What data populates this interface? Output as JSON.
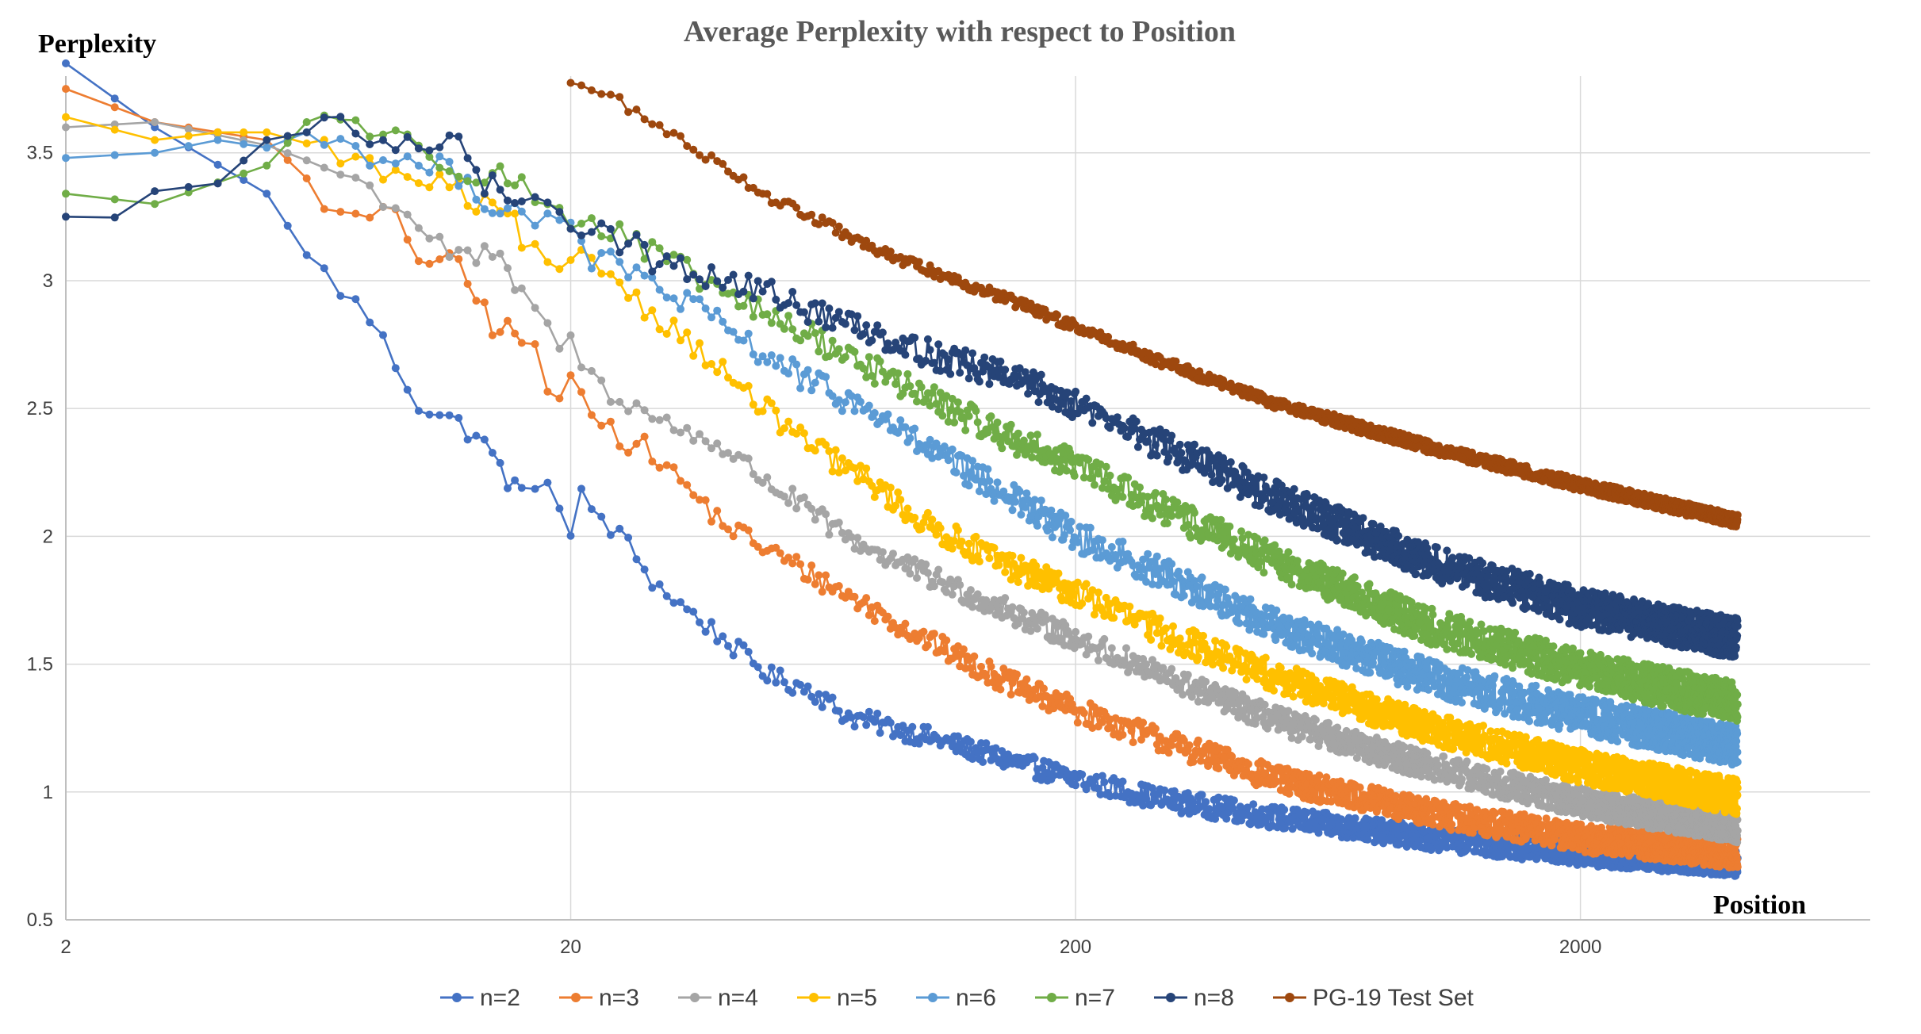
{
  "chart_data": {
    "type": "line",
    "title": "Average Perplexity with respect to Position",
    "xlabel": "Position",
    "ylabel": "Perplexity",
    "x_scale": "log",
    "xlim": [
      2,
      7500
    ],
    "ylim": [
      0.5,
      3.8
    ],
    "x_ticks": [
      2,
      20,
      200,
      2000
    ],
    "x_tick_labels": [
      "2",
      "20",
      "200",
      "2000"
    ],
    "y_ticks": [
      0.5,
      1,
      1.5,
      2,
      2.5,
      3,
      3.5
    ],
    "y_tick_labels": [
      "0.5",
      "1",
      "1.5",
      "2",
      "2.5",
      "3",
      "3.5"
    ],
    "x_max_data": 4096,
    "grid": true,
    "legend_position": "bottom",
    "series": [
      {
        "name": "n=2",
        "color": "#4472C4",
        "anchors": [
          [
            2,
            3.85
          ],
          [
            3,
            3.6
          ],
          [
            5,
            3.34
          ],
          [
            6,
            3.1
          ],
          [
            8,
            2.85
          ],
          [
            10,
            2.52
          ],
          [
            13,
            2.4
          ],
          [
            16,
            2.15
          ],
          [
            18,
            2.25
          ],
          [
            20,
            1.98
          ],
          [
            21,
            2.15
          ],
          [
            25,
            2.0
          ],
          [
            30,
            1.8
          ],
          [
            40,
            1.6
          ],
          [
            50,
            1.45
          ],
          [
            60,
            1.4
          ],
          [
            70,
            1.3
          ],
          [
            100,
            1.22
          ],
          [
            150,
            1.12
          ],
          [
            200,
            1.05
          ],
          [
            300,
            0.97
          ],
          [
            500,
            0.9
          ],
          [
            1000,
            0.82
          ],
          [
            2000,
            0.76
          ],
          [
            4096,
            0.72
          ]
        ],
        "noise": [
          0.03,
          0.05
        ]
      },
      {
        "name": "n=3",
        "color": "#ED7D31",
        "anchors": [
          [
            2,
            3.75
          ],
          [
            3,
            3.62
          ],
          [
            5,
            3.55
          ],
          [
            6,
            3.4
          ],
          [
            7,
            3.24
          ],
          [
            9,
            3.25
          ],
          [
            10,
            3.1
          ],
          [
            12,
            3.05
          ],
          [
            14,
            2.83
          ],
          [
            17,
            2.75
          ],
          [
            18,
            2.52
          ],
          [
            20,
            2.6
          ],
          [
            25,
            2.4
          ],
          [
            30,
            2.3
          ],
          [
            40,
            2.05
          ],
          [
            60,
            1.85
          ],
          [
            100,
            1.6
          ],
          [
            150,
            1.42
          ],
          [
            200,
            1.32
          ],
          [
            300,
            1.2
          ],
          [
            500,
            1.05
          ],
          [
            1000,
            0.92
          ],
          [
            2000,
            0.82
          ],
          [
            4096,
            0.76
          ]
        ],
        "noise": [
          0.03,
          0.06
        ]
      },
      {
        "name": "n=4",
        "color": "#A5A5A5",
        "anchors": [
          [
            2,
            3.6
          ],
          [
            3,
            3.62
          ],
          [
            5,
            3.53
          ],
          [
            7,
            3.42
          ],
          [
            9,
            3.3
          ],
          [
            11,
            3.15
          ],
          [
            12,
            3.08
          ],
          [
            14,
            3.1
          ],
          [
            16,
            2.95
          ],
          [
            18,
            2.8
          ],
          [
            20,
            2.75
          ],
          [
            22,
            2.62
          ],
          [
            30,
            2.45
          ],
          [
            40,
            2.35
          ],
          [
            50,
            2.2
          ],
          [
            70,
            2.0
          ],
          [
            100,
            1.85
          ],
          [
            150,
            1.7
          ],
          [
            200,
            1.6
          ],
          [
            300,
            1.45
          ],
          [
            500,
            1.28
          ],
          [
            1000,
            1.1
          ],
          [
            2000,
            0.96
          ],
          [
            4096,
            0.86
          ]
        ],
        "noise": [
          0.03,
          0.06
        ]
      },
      {
        "name": "n=5",
        "color": "#FFC000",
        "anchors": [
          [
            2,
            3.64
          ],
          [
            3,
            3.55
          ],
          [
            4,
            3.58
          ],
          [
            5,
            3.58
          ],
          [
            7,
            3.5
          ],
          [
            9,
            3.4
          ],
          [
            11,
            3.38
          ],
          [
            13,
            3.3
          ],
          [
            15,
            3.25
          ],
          [
            17,
            3.1
          ],
          [
            19,
            3.0
          ],
          [
            22,
            3.1
          ],
          [
            28,
            2.9
          ],
          [
            35,
            2.75
          ],
          [
            45,
            2.55
          ],
          [
            60,
            2.35
          ],
          [
            80,
            2.2
          ],
          [
            100,
            2.05
          ],
          [
            150,
            1.88
          ],
          [
            200,
            1.78
          ],
          [
            300,
            1.62
          ],
          [
            500,
            1.45
          ],
          [
            1000,
            1.25
          ],
          [
            2000,
            1.1
          ],
          [
            4096,
            0.98
          ]
        ],
        "noise": [
          0.03,
          0.07
        ]
      },
      {
        "name": "n=6",
        "color": "#5B9BD5",
        "anchors": [
          [
            2,
            3.48
          ],
          [
            3,
            3.5
          ],
          [
            4,
            3.55
          ],
          [
            5,
            3.52
          ],
          [
            6,
            3.58
          ],
          [
            8,
            3.5
          ],
          [
            10,
            3.45
          ],
          [
            12,
            3.42
          ],
          [
            14,
            3.3
          ],
          [
            18,
            3.25
          ],
          [
            22,
            3.1
          ],
          [
            28,
            3.0
          ],
          [
            35,
            2.9
          ],
          [
            45,
            2.75
          ],
          [
            60,
            2.6
          ],
          [
            80,
            2.48
          ],
          [
            100,
            2.35
          ],
          [
            150,
            2.15
          ],
          [
            200,
            2.0
          ],
          [
            300,
            1.85
          ],
          [
            500,
            1.65
          ],
          [
            1000,
            1.45
          ],
          [
            2000,
            1.3
          ],
          [
            4096,
            1.18
          ]
        ],
        "noise": [
          0.03,
          0.08
        ]
      },
      {
        "name": "n=7",
        "color": "#70AD47",
        "anchors": [
          [
            2,
            3.34
          ],
          [
            3,
            3.3
          ],
          [
            5,
            3.45
          ],
          [
            6,
            3.62
          ],
          [
            7,
            3.65
          ],
          [
            9,
            3.55
          ],
          [
            10,
            3.52
          ],
          [
            12,
            3.45
          ],
          [
            15,
            3.4
          ],
          [
            18,
            3.3
          ],
          [
            22,
            3.22
          ],
          [
            28,
            3.12
          ],
          [
            35,
            3.02
          ],
          [
            45,
            2.9
          ],
          [
            60,
            2.78
          ],
          [
            80,
            2.65
          ],
          [
            100,
            2.55
          ],
          [
            150,
            2.38
          ],
          [
            200,
            2.28
          ],
          [
            300,
            2.1
          ],
          [
            500,
            1.9
          ],
          [
            1000,
            1.65
          ],
          [
            2000,
            1.48
          ],
          [
            4096,
            1.35
          ]
        ],
        "noise": [
          0.03,
          0.08
        ]
      },
      {
        "name": "n=8",
        "color": "#264478",
        "anchors": [
          [
            2,
            3.25
          ],
          [
            2.3,
            3.2
          ],
          [
            3,
            3.35
          ],
          [
            4,
            3.38
          ],
          [
            5,
            3.55
          ],
          [
            6,
            3.58
          ],
          [
            7,
            3.6
          ],
          [
            8,
            3.55
          ],
          [
            10,
            3.5
          ],
          [
            11,
            3.55
          ],
          [
            12,
            3.6
          ],
          [
            13,
            3.38
          ],
          [
            15,
            3.35
          ],
          [
            18,
            3.32
          ],
          [
            20,
            3.25
          ],
          [
            25,
            3.15
          ],
          [
            30,
            3.08
          ],
          [
            40,
            3.0
          ],
          [
            50,
            2.95
          ],
          [
            60,
            2.88
          ],
          [
            80,
            2.8
          ],
          [
            100,
            2.72
          ],
          [
            150,
            2.62
          ],
          [
            200,
            2.52
          ],
          [
            300,
            2.35
          ],
          [
            500,
            2.15
          ],
          [
            1000,
            1.9
          ],
          [
            2000,
            1.72
          ],
          [
            4096,
            1.6
          ]
        ],
        "noise": [
          0.03,
          0.08
        ]
      },
      {
        "name": "PG-19 Test Set",
        "color": "#9E480E",
        "anchors": [
          [
            20,
            3.78
          ],
          [
            25,
            3.7
          ],
          [
            30,
            3.6
          ],
          [
            40,
            3.45
          ],
          [
            50,
            3.32
          ],
          [
            60,
            3.25
          ],
          [
            80,
            3.12
          ],
          [
            100,
            3.05
          ],
          [
            150,
            2.92
          ],
          [
            200,
            2.82
          ],
          [
            300,
            2.68
          ],
          [
            500,
            2.52
          ],
          [
            1000,
            2.35
          ],
          [
            2000,
            2.2
          ],
          [
            4096,
            2.06
          ]
        ],
        "noise": [
          0.015,
          0.025
        ]
      }
    ]
  }
}
